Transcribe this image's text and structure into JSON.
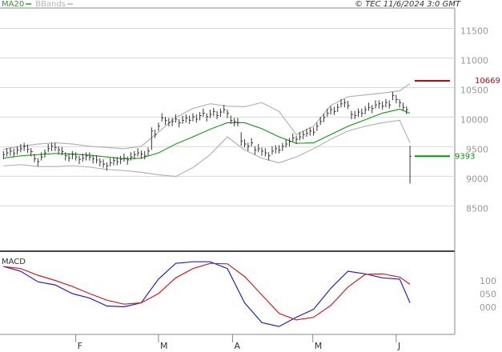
{
  "header": {
    "copyright": "© TEC 11/6/2024 3:0 GMT"
  },
  "chart_data": [
    {
      "type": "ohlc",
      "grid": true,
      "color": "#333333",
      "xlim": [
        -1,
        131
      ],
      "ylim": [
        7800,
        11900
      ],
      "yticks": [
        8500,
        9000,
        9500,
        10000,
        10500,
        11000,
        11500
      ],
      "high": [
        9480,
        9530,
        9540,
        9520,
        9560,
        9600,
        9620,
        9590,
        9530,
        9430,
        9360,
        9460,
        9510,
        9600,
        9620,
        9620,
        9560,
        9550,
        9460,
        9440,
        9480,
        9460,
        9400,
        9440,
        9460,
        9460,
        9410,
        9410,
        9360,
        9340,
        9290,
        9360,
        9380,
        9380,
        9400,
        9440,
        9390,
        9460,
        9480,
        9530,
        9490,
        9480,
        9540,
        9880,
        9840,
        9960,
        10120,
        10060,
        10040,
        10040,
        10100,
        10020,
        10080,
        10100,
        10080,
        10120,
        10100,
        10140,
        10200,
        10120,
        10180,
        10210,
        10160,
        10200,
        10260,
        10180,
        10080,
        10040,
        10040,
        9800,
        9680,
        9620,
        9700,
        9560,
        9600,
        9540,
        9530,
        9460,
        9560,
        9580,
        9580,
        9620,
        9680,
        9700,
        9780,
        9740,
        9800,
        9820,
        9860,
        9880,
        9880,
        9960,
        10060,
        10110,
        10200,
        10240,
        10230,
        10280,
        10360,
        10360,
        10330,
        10160,
        10160,
        10200,
        10200,
        10240,
        10300,
        10260,
        10340,
        10340,
        10320,
        10360,
        10340,
        10480,
        10430,
        10360,
        10300,
        10240,
        9570
      ],
      "low": [
        9340,
        9390,
        9400,
        9380,
        9420,
        9460,
        9480,
        9450,
        9390,
        9290,
        9220,
        9320,
        9370,
        9460,
        9480,
        9480,
        9420,
        9410,
        9320,
        9300,
        9340,
        9320,
        9260,
        9300,
        9320,
        9320,
        9270,
        9270,
        9220,
        9200,
        9150,
        9220,
        9240,
        9240,
        9260,
        9300,
        9250,
        9320,
        9340,
        9390,
        9350,
        9340,
        9400,
        9500,
        9700,
        9820,
        9980,
        9920,
        9900,
        9900,
        9960,
        9880,
        9940,
        9960,
        9940,
        9980,
        9960,
        10000,
        10060,
        9980,
        10040,
        10070,
        10020,
        10060,
        10120,
        10040,
        9940,
        9900,
        9900,
        9570,
        9540,
        9480,
        9560,
        9420,
        9460,
        9400,
        9390,
        9320,
        9420,
        9440,
        9440,
        9480,
        9540,
        9560,
        9640,
        9600,
        9660,
        9680,
        9720,
        9740,
        9740,
        9820,
        9920,
        9970,
        10060,
        10100,
        10090,
        10140,
        10220,
        10220,
        10190,
        10020,
        10020,
        10060,
        10060,
        10100,
        10160,
        10120,
        10200,
        10200,
        10180,
        10220,
        10200,
        10340,
        10290,
        10220,
        10160,
        10100,
        8930
      ],
      "close": [
        9420,
        9450,
        9480,
        9440,
        9500,
        9520,
        9560,
        9510,
        9470,
        9350,
        9300,
        9380,
        9450,
        9520,
        9560,
        9540,
        9500,
        9470,
        9400,
        9360,
        9420,
        9380,
        9340,
        9360,
        9400,
        9380,
        9350,
        9330,
        9300,
        9260,
        9230,
        9280,
        9320,
        9300,
        9340,
        9360,
        9330,
        9380,
        9420,
        9450,
        9430,
        9400,
        9480,
        9820,
        9760,
        9900,
        10040,
        10000,
        9960,
        9980,
        10020,
        9960,
        10000,
        10040,
        10000,
        10060,
        10020,
        10080,
        10120,
        10060,
        10100,
        10150,
        10080,
        10140,
        10180,
        10120,
        10000,
        9980,
        9960,
        9650,
        9600,
        9560,
        9620,
        9500,
        9520,
        9480,
        9450,
        9400,
        9480,
        9520,
        9500,
        9560,
        9600,
        9640,
        9700,
        9680,
        9720,
        9760,
        9780,
        9820,
        9800,
        9900,
        9980,
        10050,
        10120,
        10180,
        10150,
        10220,
        10280,
        10300,
        10250,
        10100,
        10080,
        10140,
        10120,
        10180,
        10220,
        10200,
        10260,
        10280,
        10240,
        10300,
        10260,
        10420,
        10350,
        10300,
        10220,
        10180,
        9393
      ],
      "series": [
        {
          "name": "MA20",
          "color": "#22a022",
          "x": [
            0,
            5,
            10,
            15,
            20,
            25,
            30,
            35,
            40,
            45,
            50,
            55,
            60,
            65,
            70,
            75,
            80,
            85,
            90,
            95,
            100,
            105,
            110,
            115,
            118
          ],
          "values": [
            9360,
            9400,
            9420,
            9440,
            9430,
            9410,
            9380,
            9350,
            9360,
            9450,
            9600,
            9720,
            9850,
            9960,
            9960,
            9860,
            9720,
            9610,
            9620,
            9760,
            9900,
            10010,
            10120,
            10190,
            10120
          ]
        },
        {
          "name": "BBands",
          "color": "#b4b4b4",
          "x": [
            0,
            5,
            10,
            15,
            20,
            25,
            30,
            35,
            40,
            45,
            50,
            55,
            60,
            65,
            70,
            75,
            80,
            85,
            90,
            95,
            100,
            105,
            110,
            115,
            118
          ],
          "values": [
            9510,
            9560,
            9600,
            9620,
            9600,
            9560,
            9540,
            9520,
            9560,
            9800,
            10050,
            10200,
            10280,
            10240,
            10230,
            10300,
            10150,
            9760,
            9900,
            10250,
            10400,
            10430,
            10460,
            10500,
            10620
          ],
          "lower": [
            9230,
            9250,
            9220,
            9220,
            9230,
            9210,
            9170,
            9150,
            9120,
            9080,
            9050,
            9200,
            9420,
            9720,
            9500,
            9360,
            9280,
            9380,
            9520,
            9680,
            9820,
            9900,
            9960,
            10000,
            9620
          ]
        }
      ],
      "annotations": [
        {
          "value": 10669,
          "color": "#cc0000"
        },
        {
          "value": 9393,
          "color": "#009900"
        }
      ]
    },
    {
      "type": "line",
      "title": "MACD",
      "grid": false,
      "xlim": [
        -1,
        131
      ],
      "ylim": [
        -100,
        210
      ],
      "yticks": [
        100,
        {
          "value": 50,
          "label": "050"
        },
        {
          "value": 0,
          "label": "000"
        }
      ],
      "xticks": [
        {
          "value": 21,
          "label": "F"
        },
        {
          "value": 45,
          "label": "M"
        },
        {
          "value": 66.5,
          "label": "A"
        },
        {
          "value": 89.8,
          "label": "M"
        },
        {
          "value": 114,
          "label": "J"
        }
      ],
      "series": [
        {
          "color": "#2020d8",
          "x": [
            0,
            5,
            10,
            15,
            20,
            25,
            30,
            35,
            40,
            45,
            50,
            55,
            60,
            65,
            70,
            75,
            80,
            85,
            90,
            95,
            100,
            105,
            110,
            115,
            118
          ],
          "values": [
            158,
            140,
            100,
            88,
            55,
            38,
            8,
            5,
            20,
            110,
            170,
            176,
            176,
            150,
            20,
            -55,
            -70,
            -35,
            -5,
            75,
            140,
            130,
            115,
            110,
            20
          ]
        },
        {
          "color": "#d02020",
          "x": [
            0,
            5,
            10,
            15,
            20,
            25,
            30,
            35,
            40,
            45,
            50,
            55,
            60,
            65,
            70,
            75,
            80,
            85,
            90,
            95,
            100,
            105,
            110,
            115,
            118
          ],
          "values": [
            158,
            150,
            125,
            105,
            82,
            55,
            30,
            15,
            20,
            55,
            115,
            150,
            170,
            168,
            120,
            50,
            -20,
            -45,
            -35,
            10,
            80,
            128,
            130,
            118,
            90
          ]
        }
      ]
    }
  ]
}
